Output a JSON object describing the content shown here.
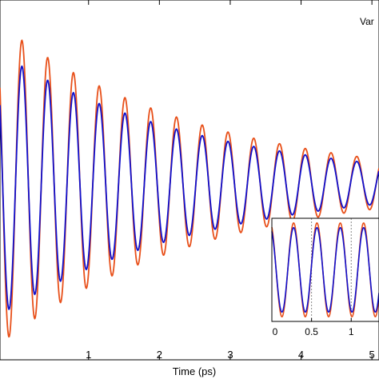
{
  "chart_data": [
    {
      "type": "line",
      "xlabel": "Time (ps)",
      "xlim": [
        -0.25,
        5.1
      ],
      "ylim": [
        -1.1,
        1.15
      ],
      "x_ticks": [
        "1",
        "2",
        "3",
        "4",
        "5"
      ],
      "x_tick_values": [
        1,
        2,
        3,
        4,
        5
      ],
      "legend_text": "Var",
      "legend_placement": "top-right",
      "grid": false,
      "series": [
        {
          "color": "#e8501a",
          "amplitude": 1.0,
          "frequency_per_ps": 2.75,
          "decay_per_ps": 0.35
        },
        {
          "color": "#1010cc",
          "amplitude": 0.82,
          "frequency_per_ps": 2.75,
          "decay_per_ps": 0.35
        }
      ]
    },
    {
      "type": "line",
      "placement": "bottom-right inset",
      "xlim": [
        0,
        1.35
      ],
      "ylim": [
        -1.1,
        1.1
      ],
      "x_ticks": [
        "0",
        "0.5",
        "1"
      ],
      "x_tick_values": [
        0,
        0.5,
        1
      ],
      "vertical_reference_lines": [
        0.5,
        1.0
      ],
      "series": [
        {
          "color": "#e8501a",
          "amplitude": 1.0,
          "frequency_per_ps": 3.4
        },
        {
          "color": "#1010cc",
          "amplitude": 0.9,
          "frequency_per_ps": 3.4
        }
      ]
    }
  ]
}
